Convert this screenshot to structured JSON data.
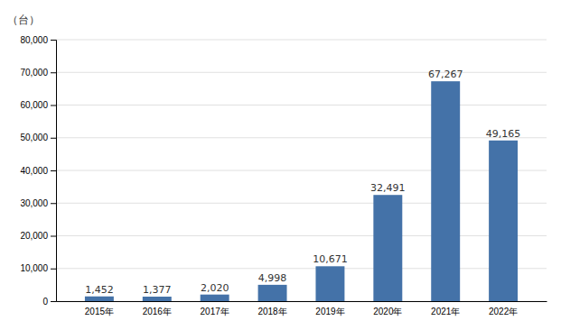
{
  "chart_data": {
    "type": "bar",
    "ylabel": "（台）",
    "categories": [
      "2015年",
      "2016年",
      "2017年",
      "2018年",
      "2019年",
      "2020年",
      "2021年",
      "2022年"
    ],
    "values": [
      1452,
      1377,
      2020,
      4998,
      10671,
      32491,
      67267,
      49165
    ],
    "value_labels": [
      "1,452",
      "1,377",
      "2,020",
      "4,998",
      "10,671",
      "32,491",
      "67,267",
      "49,165"
    ],
    "data_labels": true,
    "color": "#4472a8",
    "ylim": [
      0,
      80000
    ],
    "yticks": [
      0,
      {
        "value": 10000,
        "label": "10,000"
      },
      {
        "value": 20000,
        "label": "20,000"
      },
      {
        "value": 30000,
        "label": "30,000"
      },
      {
        "value": 40000,
        "label": "40,000"
      },
      {
        "value": 50000,
        "label": "50,000"
      },
      {
        "value": 60000,
        "label": "60,000"
      },
      {
        "value": 70000,
        "label": "70,000"
      },
      {
        "value": 80000,
        "label": "80,000"
      }
    ],
    "grid": true
  }
}
